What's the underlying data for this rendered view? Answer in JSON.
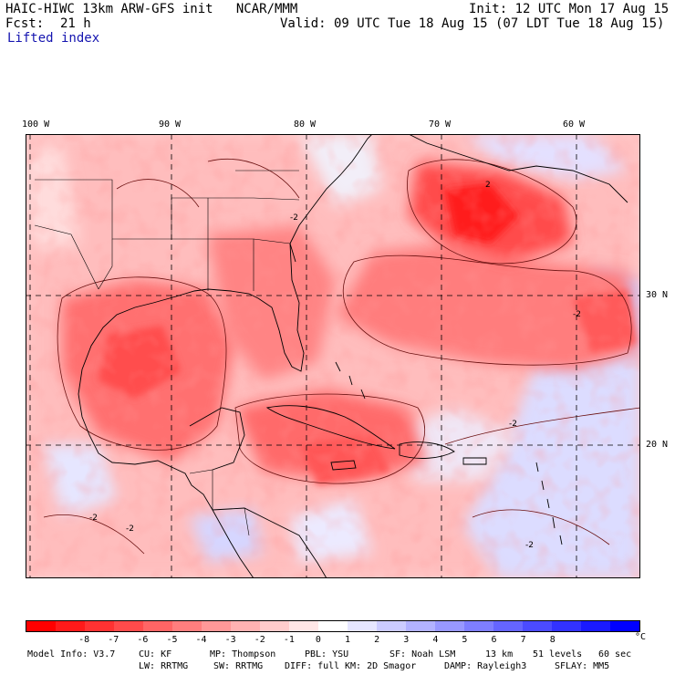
{
  "header": {
    "title": "HAIC-HIWC 13km ARW-GFS init   NCAR/MMM",
    "init": "Init: 12 UTC Mon 17 Aug 15",
    "fcst_label": "Fcst:",
    "fcst_value": "21 h",
    "valid": "Valid: 09 UTC Tue 18 Aug 15 (07 LDT Tue 18 Aug 15)",
    "field": "Lifted index"
  },
  "map": {
    "longitudes": [
      "100 W",
      "90 W",
      "80 W",
      "70 W",
      "60 W"
    ],
    "latitudes": [
      "30 N",
      "20 N"
    ],
    "contour_labels": [
      "-2",
      "-2",
      "-2",
      "-2",
      "2",
      "-2",
      "-2"
    ]
  },
  "colorbar": {
    "colors": [
      "#ff0000",
      "#ff1a1a",
      "#ff3232",
      "#ff4b4b",
      "#ff6565",
      "#ff7e7e",
      "#ff9898",
      "#ffb2b2",
      "#ffcccc",
      "#ffe6e6",
      "#ffffff",
      "#e6e6ff",
      "#ccccff",
      "#b2b2ff",
      "#9898ff",
      "#7e7eff",
      "#6565ff",
      "#4b4bff",
      "#3232ff",
      "#1a1aff",
      "#0000ff"
    ],
    "ticks": [
      "-8",
      "-7",
      "-6",
      "-5",
      "-4",
      "-3",
      "-2",
      "-1",
      "0",
      "1",
      "2",
      "3",
      "4",
      "5",
      "6",
      "7",
      "8"
    ],
    "unit": "°C"
  },
  "footer": {
    "model": "Model Info: V3.7",
    "cu": "CU: KF",
    "mp": "MP: Thompson",
    "pbl": "PBL: YSU",
    "sf": "SF: Noah LSM",
    "res": "13 km",
    "levels": "51 levels",
    "dt": "60 sec",
    "lw": "LW: RRTMG",
    "sw": "SW: RRTMG",
    "diff": "DIFF: full",
    "km": "KM: 2D Smagor",
    "damp": "DAMP: Rayleigh3",
    "sflay": "SFLAY: MM5"
  }
}
